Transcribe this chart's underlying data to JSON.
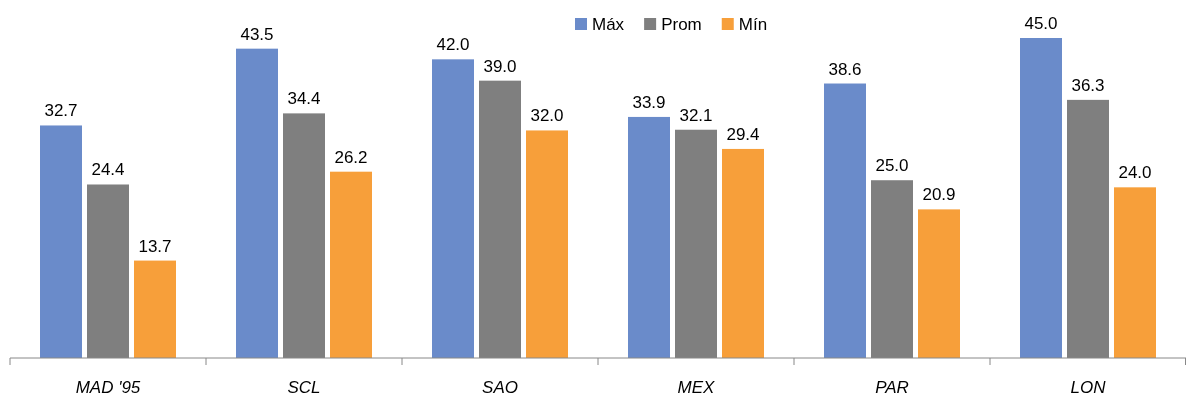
{
  "chart_data": {
    "type": "bar",
    "categories": [
      "MAD '95",
      "SCL",
      "SAO",
      "MEX",
      "PAR",
      "LON"
    ],
    "series": [
      {
        "name": "Máx",
        "color": "#6a8bca",
        "values": [
          32.7,
          43.5,
          42.0,
          33.9,
          38.6,
          45.0
        ],
        "value_labels": [
          "32.7",
          "43.5",
          "42.0",
          "33.9",
          "38.6",
          "45.0"
        ]
      },
      {
        "name": "Prom",
        "color": "#7f7f7f",
        "values": [
          24.4,
          34.4,
          39.0,
          32.1,
          25.0,
          36.3
        ],
        "value_labels": [
          "24.4",
          "34.4",
          "39.0",
          "32.1",
          "25.0",
          "36.3"
        ]
      },
      {
        "name": "Mín",
        "color": "#f79f3a",
        "values": [
          13.7,
          26.2,
          32.0,
          29.4,
          20.9,
          24.0
        ],
        "value_labels": [
          "13.7",
          "26.2",
          "32.0",
          "29.4",
          "20.9",
          "24.0"
        ]
      }
    ],
    "legend": "top"
  }
}
